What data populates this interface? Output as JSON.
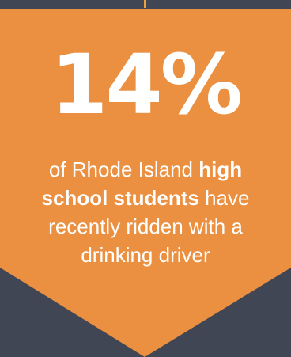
{
  "colors": {
    "background": "#414654",
    "banner": "#ea9040",
    "connector": "#e8a33c",
    "text": "#ffffff"
  },
  "stat": {
    "value": "14%",
    "caption_prefix": "of Rhode Island ",
    "caption_bold": "high school students",
    "caption_suffix": " have recently ridden with a drinking driver"
  }
}
